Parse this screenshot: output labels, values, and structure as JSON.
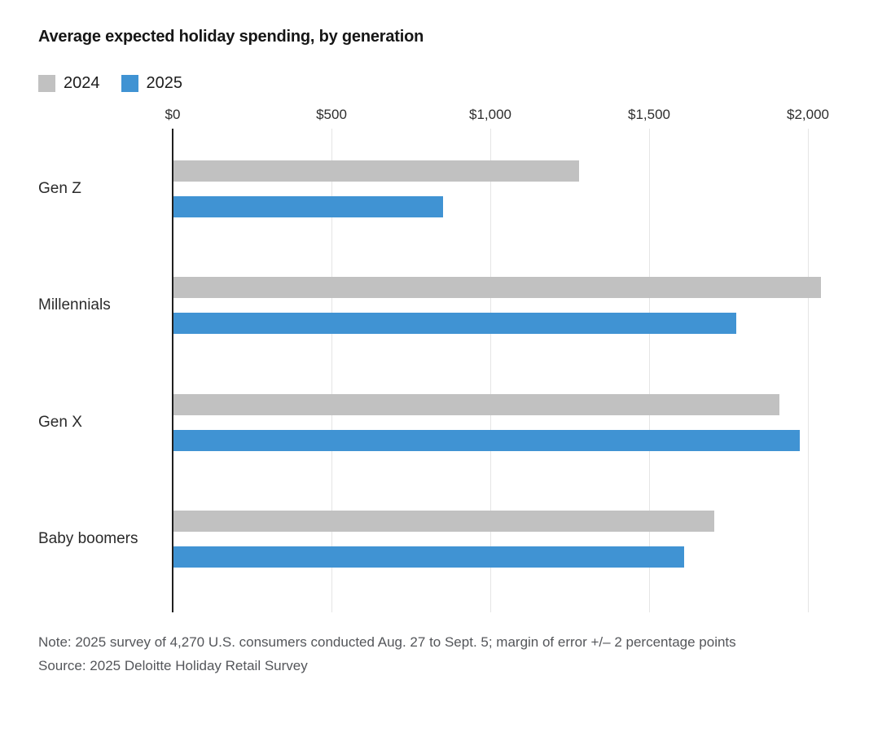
{
  "chart": {
    "title": "Average expected holiday spending, by generation",
    "note": "Note: 2025 survey of 4,270 U.S. consumers conducted Aug. 27 to Sept. 5; margin of error +/– 2 percentage points",
    "source": "Source: 2025 Deloitte Holiday Retail Survey"
  },
  "chart_data": {
    "type": "bar",
    "orientation": "horizontal",
    "title": "Average expected holiday spending, by generation",
    "categories": [
      "Gen Z",
      "Millennials",
      "Gen X",
      "Baby boomers"
    ],
    "series": [
      {
        "name": "2024",
        "color": "#c1c1c1",
        "values": [
          1280,
          2040,
          1910,
          1705
        ]
      },
      {
        "name": "2025",
        "color": "#4093d3",
        "values": [
          850,
          1775,
          1975,
          1610
        ]
      }
    ],
    "x_axis": {
      "unit": "USD",
      "min": 0,
      "max": 2000,
      "ticks": [
        0,
        500,
        1000,
        1500,
        2000
      ],
      "tick_labels": [
        "$0",
        "$500",
        "$1,000",
        "$1,500",
        "$2,000"
      ],
      "position": "top"
    },
    "grid": true,
    "legend_position": "top-left",
    "axis_color": "#1f1f1f",
    "gridline_color": "#e5e5e5"
  }
}
